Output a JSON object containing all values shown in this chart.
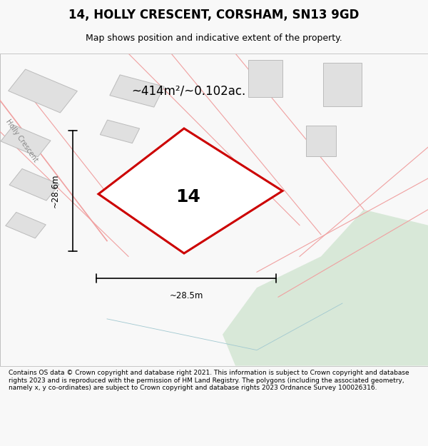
{
  "title": "14, HOLLY CRESCENT, CORSHAM, SN13 9GD",
  "subtitle": "Map shows position and indicative extent of the property.",
  "area_label": "~414m²/~0.102ac.",
  "number_label": "14",
  "dim_width_label": "~28.5m",
  "dim_height_label": "~28.6m",
  "footer": "Contains OS data © Crown copyright and database right 2021. This information is subject to Crown copyright and database rights 2023 and is reproduced with the permission of HM Land Registry. The polygons (including the associated geometry, namely x, y co-ordinates) are subject to Crown copyright and database rights 2023 Ordnance Survey 100026316.",
  "bg_color": "#f8f8f8",
  "map_bg": "#ffffff",
  "green_area_color": "#d8e8d8",
  "plot_outline_color": "#cc0000",
  "building_fill": "#e0e0e0",
  "road_line_color": "#f0a0a0",
  "boundary_line_color": "#f0a0a0",
  "dimension_line_color": "#000000"
}
